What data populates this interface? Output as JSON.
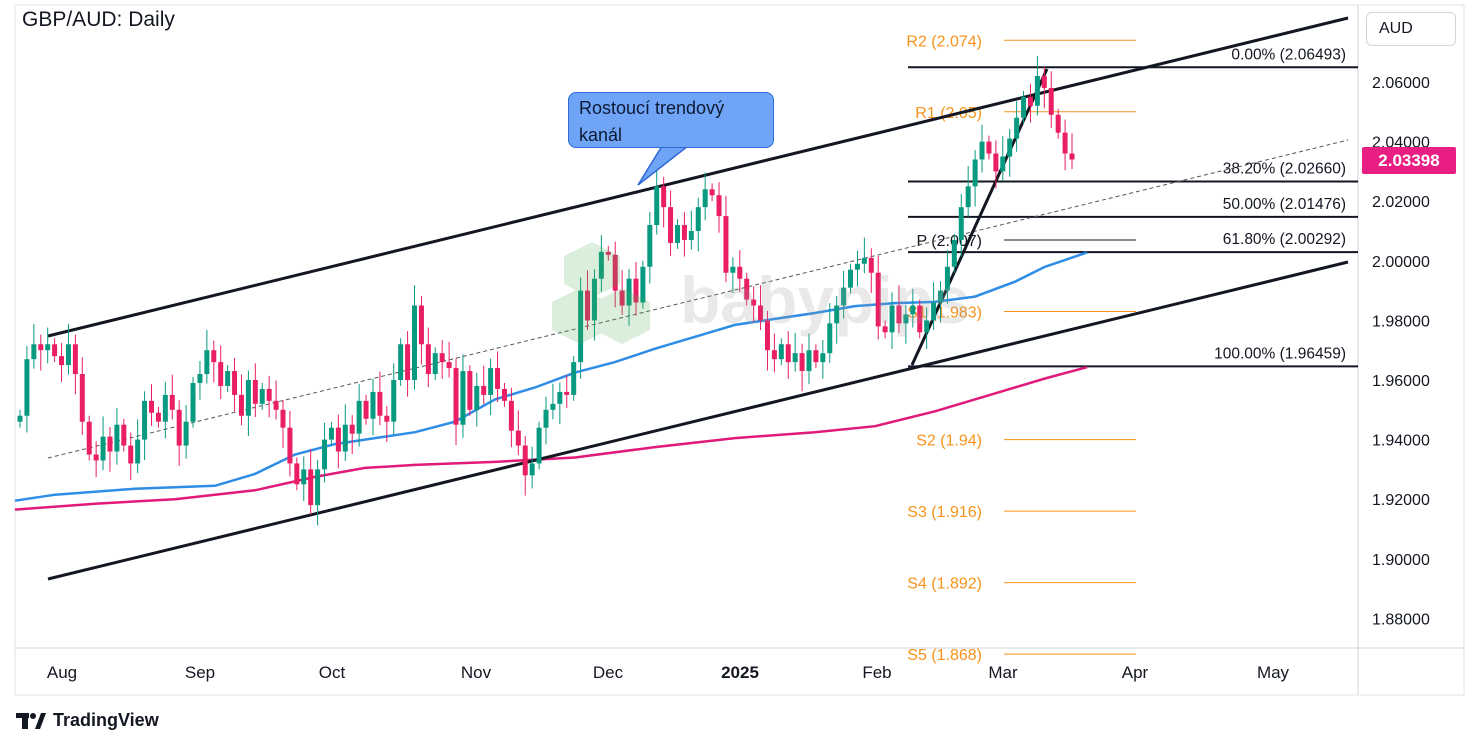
{
  "title": "GBP/AUD: Daily",
  "currency": "AUD",
  "current_price_label": "2.03398",
  "annotation": {
    "line1": "Rostoucí trendový",
    "line2": "kanál"
  },
  "brand": "TradingView",
  "watermark": "babypips",
  "colors": {
    "up": "#089981",
    "down": "#e91e63",
    "ma_fast": "#2e8de6",
    "ma_slow": "#e0197a",
    "pivot": "#f7931a",
    "price_tag": "#e91e83"
  },
  "chart_data": {
    "type": "candlestick",
    "y_axis": {
      "min": 1.87,
      "max": 2.09,
      "ticks": [
        "2.06000",
        "2.04000",
        "2.02000",
        "2.00000",
        "1.98000",
        "1.96000",
        "1.94000",
        "1.92000",
        "1.90000",
        "1.88000"
      ]
    },
    "x_axis": {
      "labels": [
        "Aug",
        "Sep",
        "Oct",
        "Nov",
        "Dec",
        "2025",
        "Feb",
        "Mar",
        "Apr",
        "May"
      ]
    },
    "fibonacci": [
      {
        "label": "0.00% (2.06493)",
        "value": 2.06493
      },
      {
        "label": "38.20% (2.02660)",
        "value": 2.0266
      },
      {
        "label": "50.00% (2.01476)",
        "value": 2.01476
      },
      {
        "label": "61.80% (2.00292)",
        "value": 2.00292
      },
      {
        "label": "100.00% (1.96459)",
        "value": 1.96459
      }
    ],
    "pivots": [
      {
        "label": "R2 (2.074)",
        "value": 2.074
      },
      {
        "label": "R1 (2.05)",
        "value": 2.05
      },
      {
        "label": "P (2.007)",
        "value": 2.007
      },
      {
        "label": "S1 (1.983)",
        "value": 1.983
      },
      {
        "label": "S2 (1.94)",
        "value": 1.94
      },
      {
        "label": "S3 (1.916)",
        "value": 1.916
      },
      {
        "label": "S4 (1.892)",
        "value": 1.892
      },
      {
        "label": "S5 (1.868)",
        "value": 1.868
      }
    ],
    "current_price": 2.03398,
    "closes": [
      1.948,
      1.967,
      1.972,
      1.97,
      1.972,
      1.968,
      1.965,
      1.972,
      1.962,
      1.946,
      1.935,
      1.933,
      1.941,
      1.936,
      1.945,
      1.938,
      1.932,
      1.94,
      1.953,
      1.949,
      1.946,
      1.955,
      1.95,
      1.938,
      1.946,
      1.959,
      1.962,
      1.97,
      1.966,
      1.958,
      1.963,
      1.955,
      1.948,
      1.96,
      1.952,
      1.957,
      1.953,
      1.95,
      1.944,
      1.932,
      1.925,
      1.93,
      1.918,
      1.93,
      1.94,
      1.944,
      1.936,
      1.945,
      1.942,
      1.953,
      1.947,
      1.956,
      1.948,
      1.946,
      1.96,
      1.972,
      1.96,
      1.985,
      1.972,
      1.962,
      1.969,
      1.966,
      1.964,
      1.945,
      1.963,
      1.95,
      1.958,
      1.955,
      1.964,
      1.957,
      1.953,
      1.943,
      1.938,
      1.928,
      1.932,
      1.944,
      1.95,
      1.952,
      1.956,
      1.955,
      1.966,
      1.99,
      1.98,
      1.994,
      2.003,
      2.002,
      1.99,
      1.985,
      1.994,
      1.986,
      1.998,
      2.012,
      2.025,
      2.018,
      2.006,
      2.012,
      2.007,
      2.01,
      2.018,
      2.024,
      2.022,
      2.015,
      1.996,
      1.998,
      1.994,
      1.987,
      1.985,
      1.98,
      1.97,
      1.967,
      1.972,
      1.966,
      1.969,
      1.963,
      1.97,
      1.966,
      1.969,
      1.979,
      1.985,
      1.991,
      1.997,
      1.999,
      2.001,
      1.996,
      1.978,
      1.976,
      1.985,
      1.979,
      1.982,
      1.985,
      1.976,
      1.98,
      1.986,
      1.99,
      1.998,
      2.007,
      2.018,
      2.025,
      2.034,
      2.04,
      2.036,
      2.03,
      2.035,
      2.041,
      2.048,
      2.055,
      2.052,
      2.062,
      2.058,
      2.049,
      2.043,
      2.036,
      2.034
    ],
    "ma_fast": [
      [
        0,
        1.9195
      ],
      [
        40,
        1.9215
      ],
      [
        80,
        1.9225
      ],
      [
        120,
        1.9235
      ],
      [
        160,
        1.924
      ],
      [
        200,
        1.9245
      ],
      [
        240,
        1.9285
      ],
      [
        280,
        1.935
      ],
      [
        320,
        1.9385
      ],
      [
        360,
        1.9405
      ],
      [
        400,
        1.9425
      ],
      [
        440,
        1.946
      ],
      [
        480,
        1.9535
      ],
      [
        520,
        1.9575
      ],
      [
        560,
        1.9625
      ],
      [
        600,
        1.966
      ],
      [
        640,
        1.9705
      ],
      [
        680,
        1.9745
      ],
      [
        720,
        1.9785
      ],
      [
        760,
        1.9805
      ],
      [
        800,
        1.9825
      ],
      [
        840,
        1.9848
      ],
      [
        880,
        1.9858
      ],
      [
        920,
        1.9862
      ],
      [
        960,
        1.988
      ],
      [
        1000,
        1.993
      ],
      [
        1030,
        1.998
      ],
      [
        1072,
        2.0028
      ]
    ],
    "ma_slow": [
      [
        0,
        1.9165
      ],
      [
        80,
        1.9185
      ],
      [
        160,
        1.92
      ],
      [
        240,
        1.923
      ],
      [
        300,
        1.9275
      ],
      [
        350,
        1.9305
      ],
      [
        400,
        1.9315
      ],
      [
        480,
        1.9325
      ],
      [
        560,
        1.934
      ],
      [
        640,
        1.9375
      ],
      [
        720,
        1.9405
      ],
      [
        800,
        1.9425
      ],
      [
        860,
        1.9445
      ],
      [
        920,
        1.9495
      ],
      [
        980,
        1.9555
      ],
      [
        1030,
        1.9605
      ],
      [
        1072,
        1.9643
      ]
    ]
  }
}
